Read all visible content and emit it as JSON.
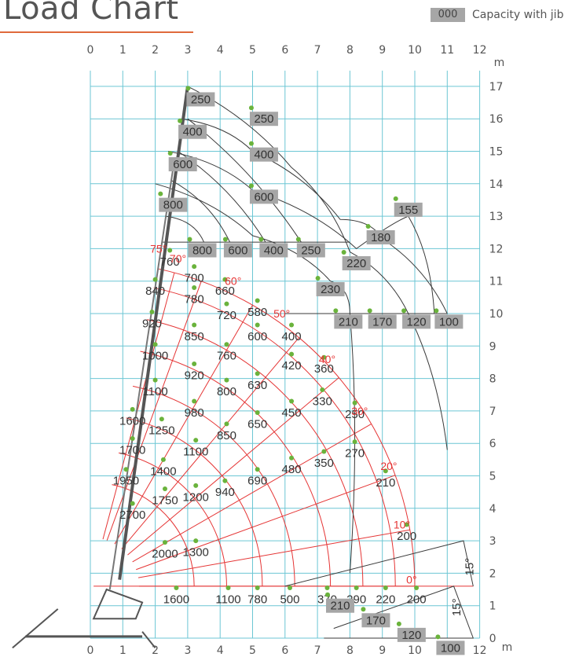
{
  "title": "Load Chart",
  "legend": {
    "swatch_text": "000",
    "label": "Capacity with jib",
    "swatch_color": "#a6a6a6"
  },
  "colors": {
    "grid": "#6cc6d4",
    "radius_arcs": "#e53535",
    "jib_curves": "#3a3a3a",
    "points": "#6ab33c",
    "jib_box": "#a6a6a6"
  },
  "chart_data": {
    "type": "scatter",
    "title": "Load Chart",
    "xlabel": "m",
    "ylabel": "m",
    "xlim": [
      0,
      12
    ],
    "ylim": [
      0,
      17
    ],
    "grid": true,
    "legend": "top-right",
    "x_ticks": [
      "0",
      "1",
      "2",
      "3",
      "4",
      "5",
      "6",
      "7",
      "8",
      "9",
      "10",
      "11",
      "12"
    ],
    "y_ticks": [
      "0",
      "1",
      "2",
      "3",
      "4",
      "5",
      "6",
      "7",
      "8",
      "9",
      "10",
      "11",
      "12",
      "13",
      "14",
      "15",
      "16",
      "17"
    ],
    "boom_angles": [
      {
        "label": "75°",
        "x": 2.1,
        "y": 12.0
      },
      {
        "label": "70°",
        "x": 2.7,
        "y": 11.7
      },
      {
        "label": "60°",
        "x": 4.4,
        "y": 11.0
      },
      {
        "label": "50°",
        "x": 5.9,
        "y": 10.0
      },
      {
        "label": "40°",
        "x": 7.3,
        "y": 8.6
      },
      {
        "label": "30°",
        "x": 8.3,
        "y": 7.0
      },
      {
        "label": "20°",
        "x": 9.2,
        "y": 5.3
      },
      {
        "label": "10°",
        "x": 9.6,
        "y": 3.5
      },
      {
        "label": "0°",
        "x": 9.9,
        "y": 1.8
      }
    ],
    "capacity_labels": [
      {
        "label": "760",
        "x": 2.45,
        "y": 11.6
      },
      {
        "label": "700",
        "x": 3.2,
        "y": 11.1
      },
      {
        "label": "840",
        "x": 2.0,
        "y": 10.7
      },
      {
        "label": "660",
        "x": 4.15,
        "y": 10.7
      },
      {
        "label": "780",
        "x": 3.2,
        "y": 10.45
      },
      {
        "label": "720",
        "x": 4.2,
        "y": 9.95
      },
      {
        "label": "580",
        "x": 5.15,
        "y": 10.05
      },
      {
        "label": "920",
        "x": 1.9,
        "y": 9.7
      },
      {
        "label": "850",
        "x": 3.2,
        "y": 9.3
      },
      {
        "label": "600",
        "x": 5.15,
        "y": 9.3
      },
      {
        "label": "400",
        "x": 6.2,
        "y": 9.3
      },
      {
        "label": "1000",
        "x": 2.0,
        "y": 8.7
      },
      {
        "label": "760",
        "x": 4.2,
        "y": 8.7
      },
      {
        "label": "420",
        "x": 6.2,
        "y": 8.4
      },
      {
        "label": "360",
        "x": 7.2,
        "y": 8.3
      },
      {
        "label": "920",
        "x": 3.2,
        "y": 8.1
      },
      {
        "label": "630",
        "x": 5.15,
        "y": 7.8
      },
      {
        "label": "1100",
        "x": 2.0,
        "y": 7.6
      },
      {
        "label": "800",
        "x": 4.2,
        "y": 7.6
      },
      {
        "label": "330",
        "x": 7.15,
        "y": 7.3
      },
      {
        "label": "980",
        "x": 3.2,
        "y": 6.95
      },
      {
        "label": "450",
        "x": 6.2,
        "y": 6.95
      },
      {
        "label": "250",
        "x": 8.15,
        "y": 6.9
      },
      {
        "label": "1600",
        "x": 1.3,
        "y": 6.7
      },
      {
        "label": "650",
        "x": 5.15,
        "y": 6.6
      },
      {
        "label": "1250",
        "x": 2.2,
        "y": 6.4
      },
      {
        "label": "850",
        "x": 4.2,
        "y": 6.25
      },
      {
        "label": "1700",
        "x": 1.3,
        "y": 5.8
      },
      {
        "label": "1100",
        "x": 3.25,
        "y": 5.75
      },
      {
        "label": "270",
        "x": 8.15,
        "y": 5.7
      },
      {
        "label": "350",
        "x": 7.2,
        "y": 5.4
      },
      {
        "label": "480",
        "x": 6.2,
        "y": 5.2
      },
      {
        "label": "1400",
        "x": 2.25,
        "y": 5.15
      },
      {
        "label": "1950",
        "x": 1.1,
        "y": 4.85
      },
      {
        "label": "690",
        "x": 5.15,
        "y": 4.85
      },
      {
        "label": "210",
        "x": 9.1,
        "y": 4.8
      },
      {
        "label": "940",
        "x": 4.15,
        "y": 4.5
      },
      {
        "label": "1750",
        "x": 2.3,
        "y": 4.25
      },
      {
        "label": "1200",
        "x": 3.25,
        "y": 4.35
      },
      {
        "label": "2700",
        "x": 1.3,
        "y": 3.8
      },
      {
        "label": "200",
        "x": 9.75,
        "y": 3.15
      },
      {
        "label": "2000",
        "x": 2.3,
        "y": 2.6
      },
      {
        "label": "1300",
        "x": 3.25,
        "y": 2.65
      },
      {
        "label": "1600",
        "x": 2.65,
        "y": 1.2
      },
      {
        "label": "1100",
        "x": 4.25,
        "y": 1.2
      },
      {
        "label": "780",
        "x": 5.15,
        "y": 1.2
      },
      {
        "label": "500",
        "x": 6.15,
        "y": 1.2
      },
      {
        "label": "370",
        "x": 7.3,
        "y": 1.2
      },
      {
        "label": "290",
        "x": 8.2,
        "y": 1.2
      },
      {
        "label": "220",
        "x": 9.1,
        "y": 1.2
      },
      {
        "label": "200",
        "x": 10.05,
        "y": 1.2
      }
    ],
    "jib_capacities": [
      {
        "label": "250",
        "x": 3.4,
        "y": 16.6
      },
      {
        "label": "250",
        "x": 5.35,
        "y": 16.0
      },
      {
        "label": "400",
        "x": 3.15,
        "y": 15.6
      },
      {
        "label": "400",
        "x": 5.35,
        "y": 14.9
      },
      {
        "label": "600",
        "x": 2.85,
        "y": 14.6
      },
      {
        "label": "600",
        "x": 5.35,
        "y": 13.6
      },
      {
        "label": "800",
        "x": 2.55,
        "y": 13.35
      },
      {
        "label": "155",
        "x": 9.8,
        "y": 13.2
      },
      {
        "label": "180",
        "x": 8.95,
        "y": 12.35
      },
      {
        "label": "800",
        "x": 3.45,
        "y": 11.95
      },
      {
        "label": "600",
        "x": 4.55,
        "y": 11.95
      },
      {
        "label": "400",
        "x": 5.65,
        "y": 11.95
      },
      {
        "label": "250",
        "x": 6.8,
        "y": 11.95
      },
      {
        "label": "220",
        "x": 8.2,
        "y": 11.55
      },
      {
        "label": "230",
        "x": 7.4,
        "y": 10.75
      },
      {
        "label": "210",
        "x": 7.95,
        "y": 9.75
      },
      {
        "label": "170",
        "x": 9.0,
        "y": 9.75
      },
      {
        "label": "120",
        "x": 10.05,
        "y": 9.75
      },
      {
        "label": "100",
        "x": 11.05,
        "y": 9.75
      },
      {
        "label": "210",
        "x": 7.7,
        "y": 1.0
      },
      {
        "label": "170",
        "x": 8.8,
        "y": 0.55
      },
      {
        "label": "120",
        "x": 9.9,
        "y": 0.1
      },
      {
        "label": "100",
        "x": 11.1,
        "y": -0.3
      }
    ],
    "slope_labels": [
      {
        "label": "15°",
        "x": 11.8,
        "y": 2.2
      },
      {
        "label": "15°",
        "x": 11.4,
        "y": 0.95
      }
    ]
  }
}
